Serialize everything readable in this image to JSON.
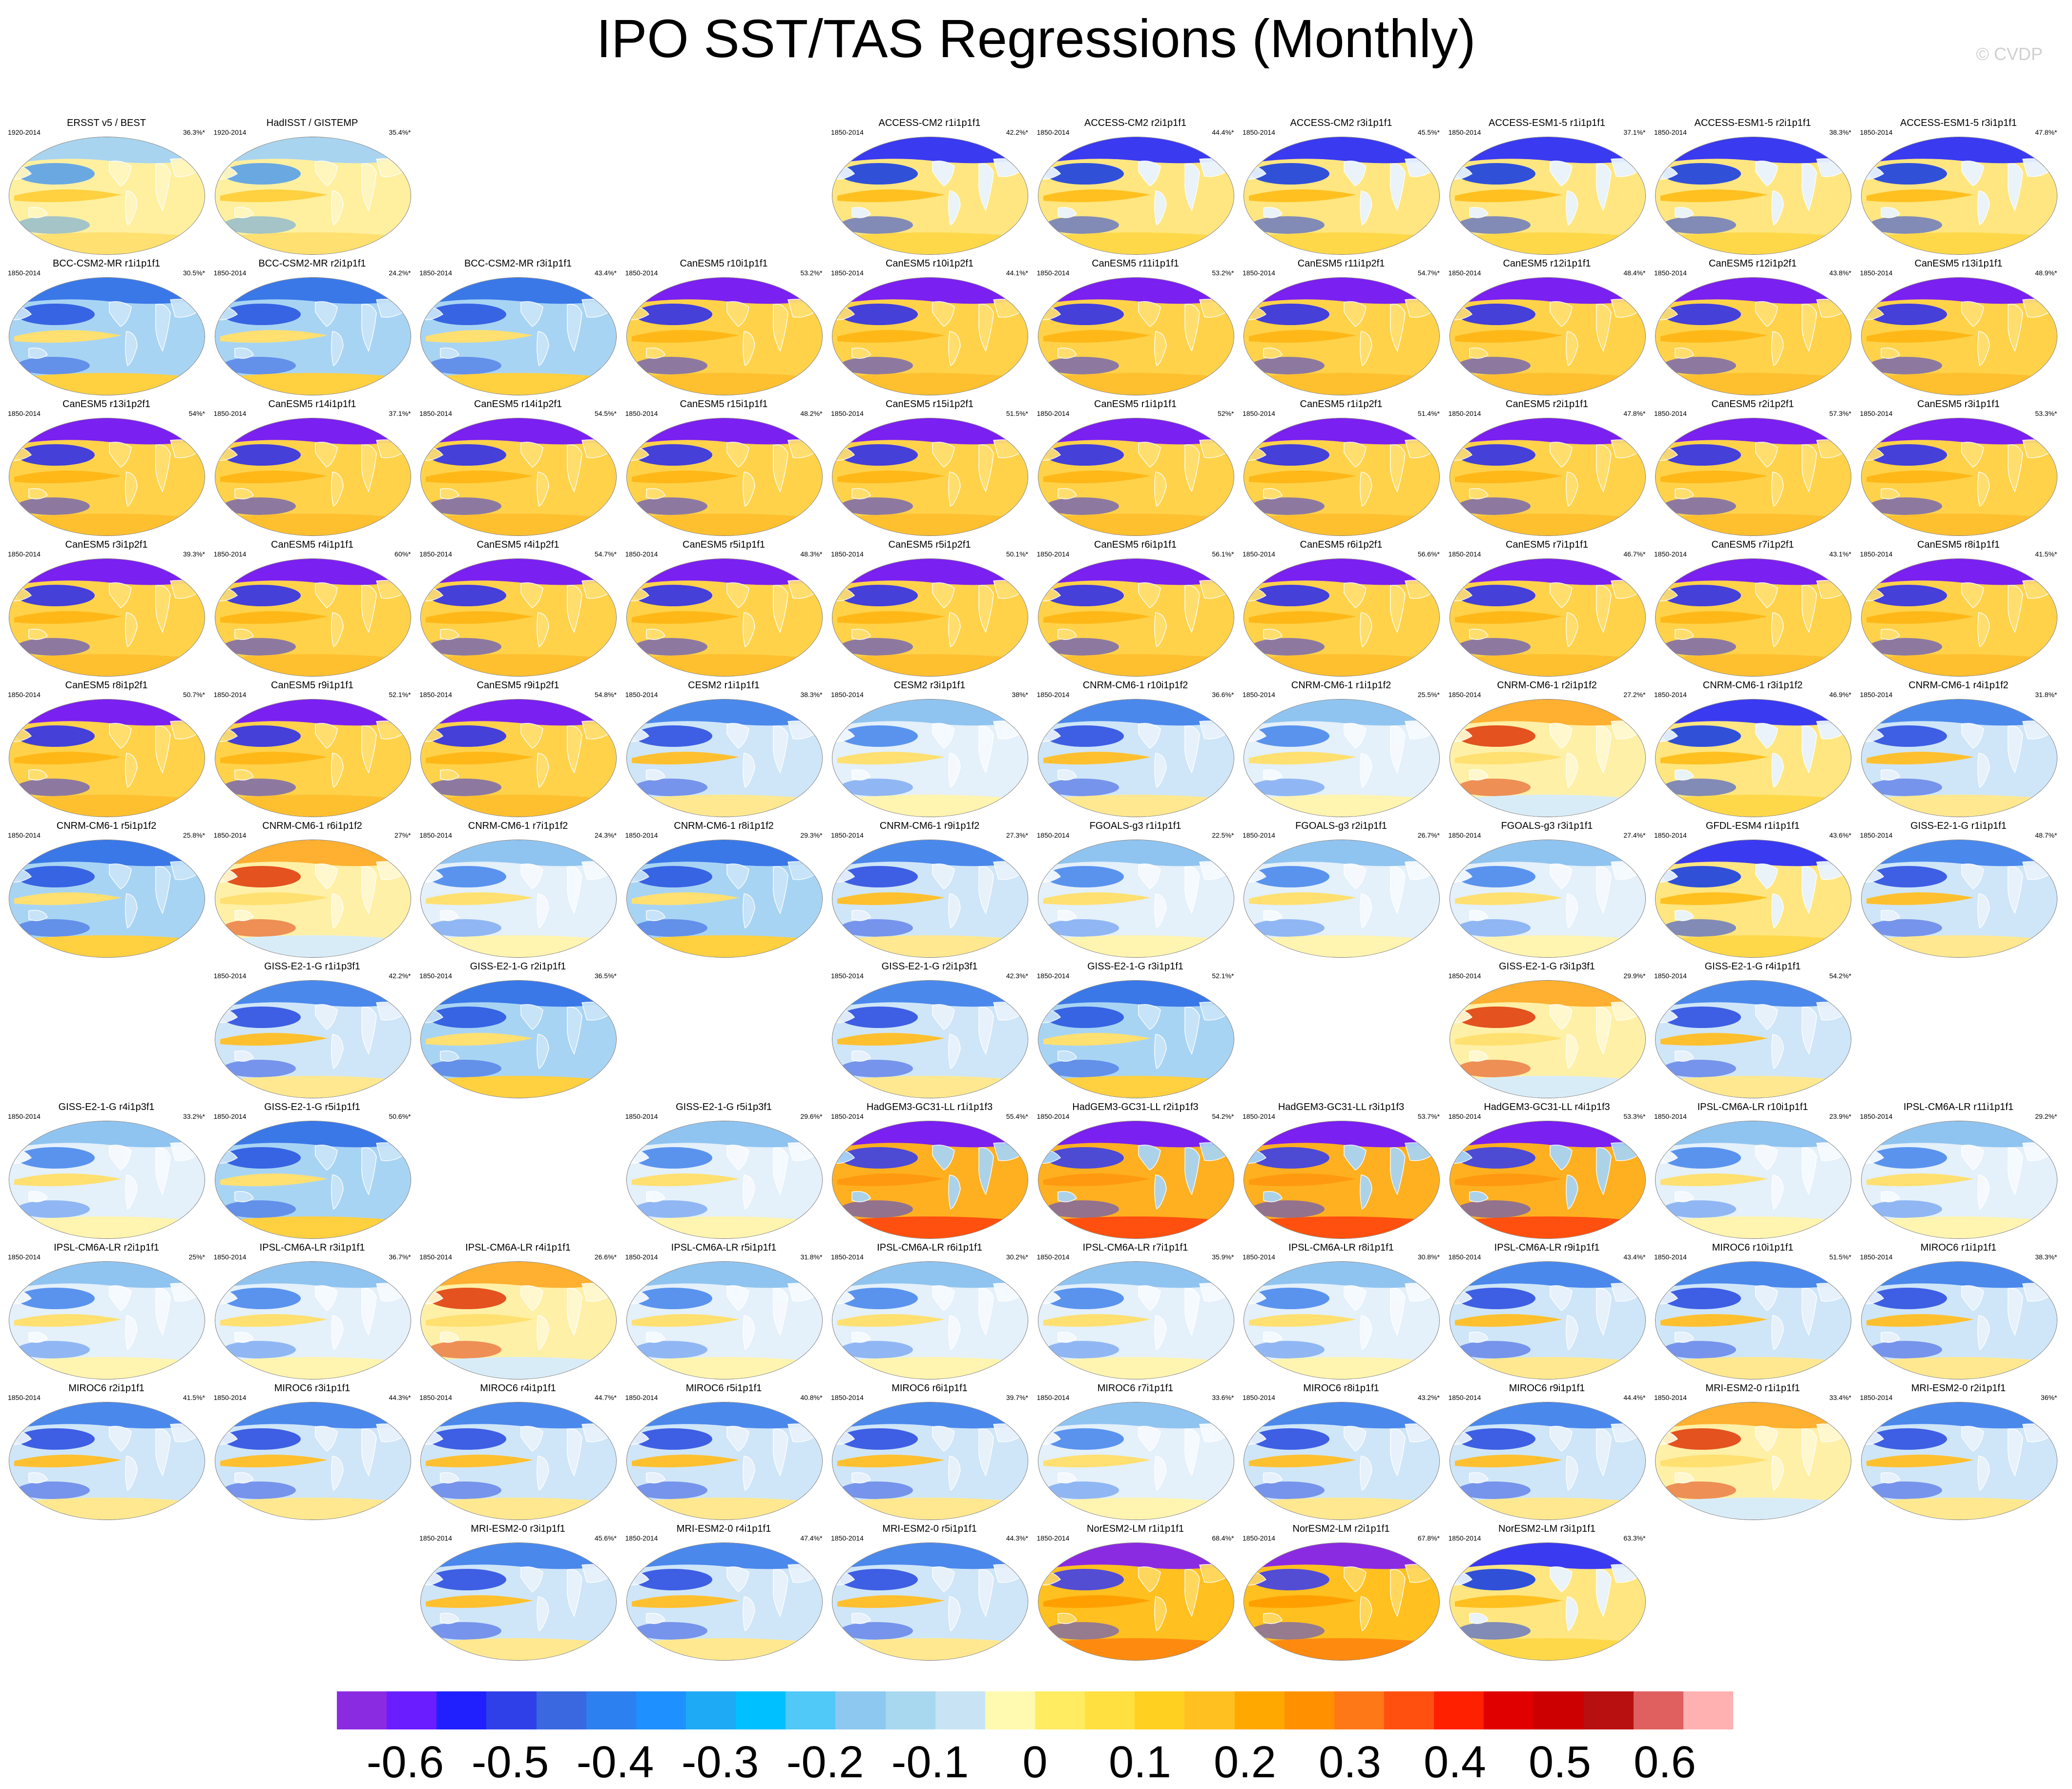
{
  "title": "IPO SST/TAS Regressions (Monthly)",
  "credit": "© CVDP",
  "colorbar": {
    "colors": [
      "#8a2be2",
      "#6a1dff",
      "#2020ff",
      "#3040e8",
      "#3a68e0",
      "#2d80f0",
      "#1e90ff",
      "#1eaaf5",
      "#00c0ff",
      "#50c8f8",
      "#8cc8f0",
      "#a8d8f0",
      "#c8e4f4",
      "#fffab0",
      "#ffec60",
      "#ffe040",
      "#ffd020",
      "#ffc020",
      "#ffa800",
      "#ff9000",
      "#ff7818",
      "#ff5010",
      "#ff2000",
      "#e00000",
      "#cc0000",
      "#b81010",
      "#e06060",
      "#ffb0b0"
    ],
    "labels": [
      "-0.6",
      "-0.5",
      "-0.4",
      "-0.3",
      "-0.2",
      "-0.1",
      "0",
      "0.1",
      "0.2",
      "0.3",
      "0.4",
      "0.5",
      "0.6"
    ],
    "label_values": [
      -0.6,
      -0.5,
      -0.4,
      -0.3,
      -0.2,
      -0.1,
      0,
      0.1,
      0.2,
      0.3,
      0.4,
      0.5,
      0.6
    ]
  },
  "panels": [
    {
      "name": "ERSST v5 / BEST",
      "years": "1920-2014",
      "pct": "36.3%*",
      "row": 0,
      "col": 0,
      "style": "obs"
    },
    {
      "name": "HadISST / GISTEMP",
      "years": "1920-2014",
      "pct": "35.4%*",
      "row": 0,
      "col": 1,
      "style": "obs"
    },
    {
      "name": "ACCESS-CM2 r1i1p1f1",
      "years": "1850-2014",
      "pct": "42.2%*",
      "row": 0,
      "col": 4,
      "style": "strong"
    },
    {
      "name": "ACCESS-CM2 r2i1p1f1",
      "years": "1850-2014",
      "pct": "44.4%*",
      "row": 0,
      "col": 5,
      "style": "strong"
    },
    {
      "name": "ACCESS-CM2 r3i1p1f1",
      "years": "1850-2014",
      "pct": "45.5%*",
      "row": 0,
      "col": 6,
      "style": "strong"
    },
    {
      "name": "ACCESS-ESM1-5 r1i1p1f1",
      "years": "1850-2014",
      "pct": "37.1%*",
      "row": 0,
      "col": 7,
      "style": "strong"
    },
    {
      "name": "ACCESS-ESM1-5 r2i1p1f1",
      "years": "1850-2014",
      "pct": "38.3%*",
      "row": 0,
      "col": 8,
      "style": "strong"
    },
    {
      "name": "ACCESS-ESM1-5 r3i1p1f1",
      "years": "1850-2014",
      "pct": "47.8%*",
      "row": 0,
      "col": 9,
      "style": "strong"
    },
    {
      "name": "BCC-CSM2-MR r1i1p1f1",
      "years": "1850-2014",
      "pct": "30.5%*",
      "row": 1,
      "col": 0,
      "style": "blue"
    },
    {
      "name": "BCC-CSM2-MR r2i1p1f1",
      "years": "1850-2014",
      "pct": "24.2%*",
      "row": 1,
      "col": 1,
      "style": "blue"
    },
    {
      "name": "BCC-CSM2-MR r3i1p1f1",
      "years": "1850-2014",
      "pct": "43.4%*",
      "row": 1,
      "col": 2,
      "style": "blue"
    },
    {
      "name": "CanESM5 r10i1p1f1",
      "years": "1850-2014",
      "pct": "53.2%*",
      "row": 1,
      "col": 3,
      "style": "can"
    },
    {
      "name": "CanESM5 r10i1p2f1",
      "years": "1850-2014",
      "pct": "44.1%*",
      "row": 1,
      "col": 4,
      "style": "can"
    },
    {
      "name": "CanESM5 r11i1p1f1",
      "years": "1850-2014",
      "pct": "53.2%*",
      "row": 1,
      "col": 5,
      "style": "can"
    },
    {
      "name": "CanESM5 r11i1p2f1",
      "years": "1850-2014",
      "pct": "54.7%*",
      "row": 1,
      "col": 6,
      "style": "can"
    },
    {
      "name": "CanESM5 r12i1p1f1",
      "years": "1850-2014",
      "pct": "48.4%*",
      "row": 1,
      "col": 7,
      "style": "can"
    },
    {
      "name": "CanESM5 r12i1p2f1",
      "years": "1850-2014",
      "pct": "43.8%*",
      "row": 1,
      "col": 8,
      "style": "can"
    },
    {
      "name": "CanESM5 r13i1p1f1",
      "years": "1850-2014",
      "pct": "48.9%*",
      "row": 1,
      "col": 9,
      "style": "can"
    },
    {
      "name": "CanESM5 r13i1p2f1",
      "years": "1850-2014",
      "pct": "54%*",
      "row": 2,
      "col": 0,
      "style": "can"
    },
    {
      "name": "CanESM5 r14i1p1f1",
      "years": "1850-2014",
      "pct": "37.1%*",
      "row": 2,
      "col": 1,
      "style": "can"
    },
    {
      "name": "CanESM5 r14i1p2f1",
      "years": "1850-2014",
      "pct": "54.5%*",
      "row": 2,
      "col": 2,
      "style": "can"
    },
    {
      "name": "CanESM5 r15i1p1f1",
      "years": "1850-2014",
      "pct": "48.2%*",
      "row": 2,
      "col": 3,
      "style": "can"
    },
    {
      "name": "CanESM5 r15i1p2f1",
      "years": "1850-2014",
      "pct": "51.5%*",
      "row": 2,
      "col": 4,
      "style": "can"
    },
    {
      "name": "CanESM5 r1i1p1f1",
      "years": "1850-2014",
      "pct": "52%*",
      "row": 2,
      "col": 5,
      "style": "can"
    },
    {
      "name": "CanESM5 r1i1p2f1",
      "years": "1850-2014",
      "pct": "51.4%*",
      "row": 2,
      "col": 6,
      "style": "can"
    },
    {
      "name": "CanESM5 r2i1p1f1",
      "years": "1850-2014",
      "pct": "47.8%*",
      "row": 2,
      "col": 7,
      "style": "can"
    },
    {
      "name": "CanESM5 r2i1p2f1",
      "years": "1850-2014",
      "pct": "57.3%*",
      "row": 2,
      "col": 8,
      "style": "can"
    },
    {
      "name": "CanESM5 r3i1p1f1",
      "years": "1850-2014",
      "pct": "53.3%*",
      "row": 2,
      "col": 9,
      "style": "can"
    },
    {
      "name": "CanESM5 r3i1p2f1",
      "years": "1850-2014",
      "pct": "39.3%*",
      "row": 3,
      "col": 0,
      "style": "can"
    },
    {
      "name": "CanESM5 r4i1p1f1",
      "years": "1850-2014",
      "pct": "60%*",
      "row": 3,
      "col": 1,
      "style": "can"
    },
    {
      "name": "CanESM5 r4i1p2f1",
      "years": "1850-2014",
      "pct": "54.7%*",
      "row": 3,
      "col": 2,
      "style": "can"
    },
    {
      "name": "CanESM5 r5i1p1f1",
      "years": "1850-2014",
      "pct": "48.3%*",
      "row": 3,
      "col": 3,
      "style": "can"
    },
    {
      "name": "CanESM5 r5i1p2f1",
      "years": "1850-2014",
      "pct": "50.1%*",
      "row": 3,
      "col": 4,
      "style": "can"
    },
    {
      "name": "CanESM5 r6i1p1f1",
      "years": "1850-2014",
      "pct": "56.1%*",
      "row": 3,
      "col": 5,
      "style": "can"
    },
    {
      "name": "CanESM5 r6i1p2f1",
      "years": "1850-2014",
      "pct": "56.6%*",
      "row": 3,
      "col": 6,
      "style": "can"
    },
    {
      "name": "CanESM5 r7i1p1f1",
      "years": "1850-2014",
      "pct": "46.7%*",
      "row": 3,
      "col": 7,
      "style": "can"
    },
    {
      "name": "CanESM5 r7i1p2f1",
      "years": "1850-2014",
      "pct": "43.1%*",
      "row": 3,
      "col": 8,
      "style": "can"
    },
    {
      "name": "CanESM5 r8i1p1f1",
      "years": "1850-2014",
      "pct": "41.5%*",
      "row": 3,
      "col": 9,
      "style": "can"
    },
    {
      "name": "CanESM5 r8i1p2f1",
      "years": "1850-2014",
      "pct": "50.7%*",
      "row": 4,
      "col": 0,
      "style": "can"
    },
    {
      "name": "CanESM5 r9i1p1f1",
      "years": "1850-2014",
      "pct": "52.1%*",
      "row": 4,
      "col": 1,
      "style": "can"
    },
    {
      "name": "CanESM5 r9i1p2f1",
      "years": "1850-2014",
      "pct": "54.8%*",
      "row": 4,
      "col": 2,
      "style": "can"
    },
    {
      "name": "CESM2 r1i1p1f1",
      "years": "1850-2014",
      "pct": "38.3%*",
      "row": 4,
      "col": 3,
      "style": "mid"
    },
    {
      "name": "CESM2 r3i1p1f1",
      "years": "1850-2014",
      "pct": "38%*",
      "row": 4,
      "col": 4,
      "style": "pale"
    },
    {
      "name": "CNRM-CM6-1 r10i1p1f2",
      "years": "1850-2014",
      "pct": "36.6%*",
      "row": 4,
      "col": 5,
      "style": "mid"
    },
    {
      "name": "CNRM-CM6-1 r1i1p1f2",
      "years": "1850-2014",
      "pct": "25.5%*",
      "row": 4,
      "col": 6,
      "style": "pale"
    },
    {
      "name": "CNRM-CM6-1 r2i1p1f2",
      "years": "1850-2014",
      "pct": "27.2%*",
      "row": 4,
      "col": 7,
      "style": "warm"
    },
    {
      "name": "CNRM-CM6-1 r3i1p1f2",
      "years": "1850-2014",
      "pct": "46.9%*",
      "row": 4,
      "col": 8,
      "style": "strong"
    },
    {
      "name": "CNRM-CM6-1 r4i1p1f2",
      "years": "1850-2014",
      "pct": "31.8%*",
      "row": 4,
      "col": 9,
      "style": "mid"
    },
    {
      "name": "CNRM-CM6-1 r5i1p1f2",
      "years": "1850-2014",
      "pct": "25.8%*",
      "row": 5,
      "col": 0,
      "style": "blue"
    },
    {
      "name": "CNRM-CM6-1 r6i1p1f2",
      "years": "1850-2014",
      "pct": "27%*",
      "row": 5,
      "col": 1,
      "style": "warm"
    },
    {
      "name": "CNRM-CM6-1 r7i1p1f2",
      "years": "1850-2014",
      "pct": "24.3%*",
      "row": 5,
      "col": 2,
      "style": "pale"
    },
    {
      "name": "CNRM-CM6-1 r8i1p1f2",
      "years": "1850-2014",
      "pct": "29.3%*",
      "row": 5,
      "col": 3,
      "style": "blue"
    },
    {
      "name": "CNRM-CM6-1 r9i1p1f2",
      "years": "1850-2014",
      "pct": "27.3%*",
      "row": 5,
      "col": 4,
      "style": "mid"
    },
    {
      "name": "FGOALS-g3 r1i1p1f1",
      "years": "1850-2014",
      "pct": "22.5%*",
      "row": 5,
      "col": 5,
      "style": "pale"
    },
    {
      "name": "FGOALS-g3 r2i1p1f1",
      "years": "1850-2014",
      "pct": "26.7%*",
      "row": 5,
      "col": 6,
      "style": "pale"
    },
    {
      "name": "FGOALS-g3 r3i1p1f1",
      "years": "1850-2014",
      "pct": "27.4%*",
      "row": 5,
      "col": 7,
      "style": "pale"
    },
    {
      "name": "GFDL-ESM4 r1i1p1f1",
      "years": "1850-2014",
      "pct": "43.6%*",
      "row": 5,
      "col": 8,
      "style": "strong"
    },
    {
      "name": "GISS-E2-1-G r1i1p1f1",
      "years": "1850-2014",
      "pct": "48.7%*",
      "row": 5,
      "col": 9,
      "style": "mid"
    },
    {
      "name": "GISS-E2-1-G r1i1p3f1",
      "years": "1850-2014",
      "pct": "42.2%*",
      "row": 6,
      "col": 1,
      "style": "mid"
    },
    {
      "name": "GISS-E2-1-G r2i1p1f1",
      "years": "1850-2014",
      "pct": "36.5%*",
      "row": 6,
      "col": 2,
      "style": "blue"
    },
    {
      "name": "GISS-E2-1-G r2i1p3f1",
      "years": "1850-2014",
      "pct": "42.3%*",
      "row": 6,
      "col": 4,
      "style": "mid"
    },
    {
      "name": "GISS-E2-1-G r3i1p1f1",
      "years": "1850-2014",
      "pct": "52.1%*",
      "row": 6,
      "col": 5,
      "style": "blue"
    },
    {
      "name": "GISS-E2-1-G r3i1p3f1",
      "years": "1850-2014",
      "pct": "29.9%*",
      "row": 6,
      "col": 7,
      "style": "warm"
    },
    {
      "name": "GISS-E2-1-G r4i1p1f1",
      "years": "1850-2014",
      "pct": "54.2%*",
      "row": 6,
      "col": 8,
      "style": "mid"
    },
    {
      "name": "GISS-E2-1-G r4i1p3f1",
      "years": "1850-2014",
      "pct": "33.2%*",
      "row": 7,
      "col": 0,
      "style": "pale"
    },
    {
      "name": "GISS-E2-1-G r5i1p1f1",
      "years": "1850-2014",
      "pct": "50.6%*",
      "row": 7,
      "col": 1,
      "style": "blue"
    },
    {
      "name": "GISS-E2-1-G r5i1p3f1",
      "years": "1850-2014",
      "pct": "29.6%*",
      "row": 7,
      "col": 3,
      "style": "pale"
    },
    {
      "name": "HadGEM3-GC31-LL r1i1p1f3",
      "years": "1850-2014",
      "pct": "55.4%*",
      "row": 7,
      "col": 4,
      "style": "had"
    },
    {
      "name": "HadGEM3-GC31-LL r2i1p1f3",
      "years": "1850-2014",
      "pct": "54.2%*",
      "row": 7,
      "col": 5,
      "style": "had"
    },
    {
      "name": "HadGEM3-GC31-LL r3i1p1f3",
      "years": "1850-2014",
      "pct": "53.7%*",
      "row": 7,
      "col": 6,
      "style": "had"
    },
    {
      "name": "HadGEM3-GC31-LL r4i1p1f3",
      "years": "1850-2014",
      "pct": "53.3%*",
      "row": 7,
      "col": 7,
      "style": "had"
    },
    {
      "name": "IPSL-CM6A-LR r10i1p1f1",
      "years": "1850-2014",
      "pct": "23.9%*",
      "row": 7,
      "col": 8,
      "style": "pale"
    },
    {
      "name": "IPSL-CM6A-LR r11i1p1f1",
      "years": "1850-2014",
      "pct": "29.2%*",
      "row": 7,
      "col": 9,
      "style": "pale"
    },
    {
      "name": "IPSL-CM6A-LR r2i1p1f1",
      "years": "1850-2014",
      "pct": "25%*",
      "row": 8,
      "col": 0,
      "style": "pale"
    },
    {
      "name": "IPSL-CM6A-LR r3i1p1f1",
      "years": "1850-2014",
      "pct": "36.7%*",
      "row": 8,
      "col": 1,
      "style": "pale"
    },
    {
      "name": "IPSL-CM6A-LR r4i1p1f1",
      "years": "1850-2014",
      "pct": "26.6%*",
      "row": 8,
      "col": 2,
      "style": "warm"
    },
    {
      "name": "IPSL-CM6A-LR r5i1p1f1",
      "years": "1850-2014",
      "pct": "31.8%*",
      "row": 8,
      "col": 3,
      "style": "pale"
    },
    {
      "name": "IPSL-CM6A-LR r6i1p1f1",
      "years": "1850-2014",
      "pct": "30.2%*",
      "row": 8,
      "col": 4,
      "style": "pale"
    },
    {
      "name": "IPSL-CM6A-LR r7i1p1f1",
      "years": "1850-2014",
      "pct": "35.9%*",
      "row": 8,
      "col": 5,
      "style": "pale"
    },
    {
      "name": "IPSL-CM6A-LR r8i1p1f1",
      "years": "1850-2014",
      "pct": "30.8%*",
      "row": 8,
      "col": 6,
      "style": "pale"
    },
    {
      "name": "IPSL-CM6A-LR r9i1p1f1",
      "years": "1850-2014",
      "pct": "43.4%*",
      "row": 8,
      "col": 7,
      "style": "mid"
    },
    {
      "name": "MIROC6 r10i1p1f1",
      "years": "1850-2014",
      "pct": "51.5%*",
      "row": 8,
      "col": 8,
      "style": "mid"
    },
    {
      "name": "MIROC6 r1i1p1f1",
      "years": "1850-2014",
      "pct": "38.3%*",
      "row": 8,
      "col": 9,
      "style": "mid"
    },
    {
      "name": "MIROC6 r2i1p1f1",
      "years": "1850-2014",
      "pct": "41.5%*",
      "row": 9,
      "col": 0,
      "style": "mid"
    },
    {
      "name": "MIROC6 r3i1p1f1",
      "years": "1850-2014",
      "pct": "44.3%*",
      "row": 9,
      "col": 1,
      "style": "mid"
    },
    {
      "name": "MIROC6 r4i1p1f1",
      "years": "1850-2014",
      "pct": "44.7%*",
      "row": 9,
      "col": 2,
      "style": "mid"
    },
    {
      "name": "MIROC6 r5i1p1f1",
      "years": "1850-2014",
      "pct": "40.8%*",
      "row": 9,
      "col": 3,
      "style": "mid"
    },
    {
      "name": "MIROC6 r6i1p1f1",
      "years": "1850-2014",
      "pct": "39.7%*",
      "row": 9,
      "col": 4,
      "style": "mid"
    },
    {
      "name": "MIROC6 r7i1p1f1",
      "years": "1850-2014",
      "pct": "33.6%*",
      "row": 9,
      "col": 5,
      "style": "pale"
    },
    {
      "name": "MIROC6 r8i1p1f1",
      "years": "1850-2014",
      "pct": "43.2%*",
      "row": 9,
      "col": 6,
      "style": "mid"
    },
    {
      "name": "MIROC6 r9i1p1f1",
      "years": "1850-2014",
      "pct": "44.4%*",
      "row": 9,
      "col": 7,
      "style": "mid"
    },
    {
      "name": "MRI-ESM2-0 r1i1p1f1",
      "years": "1850-2014",
      "pct": "33.4%*",
      "row": 9,
      "col": 8,
      "style": "warm"
    },
    {
      "name": "MRI-ESM2-0 r2i1p1f1",
      "years": "1850-2014",
      "pct": "36%*",
      "row": 9,
      "col": 9,
      "style": "mid"
    },
    {
      "name": "MRI-ESM2-0 r3i1p1f1",
      "years": "1850-2014",
      "pct": "45.6%*",
      "row": 10,
      "col": 2,
      "style": "mid"
    },
    {
      "name": "MRI-ESM2-0 r4i1p1f1",
      "years": "1850-2014",
      "pct": "47.4%*",
      "row": 10,
      "col": 3,
      "style": "mid"
    },
    {
      "name": "MRI-ESM2-0 r5i1p1f1",
      "years": "1850-2014",
      "pct": "44.3%*",
      "row": 10,
      "col": 4,
      "style": "mid"
    },
    {
      "name": "NorESM2-LM r1i1p1f1",
      "years": "1850-2014",
      "pct": "68.4%*",
      "row": 10,
      "col": 5,
      "style": "nor"
    },
    {
      "name": "NorESM2-LM r2i1p1f1",
      "years": "1850-2014",
      "pct": "67.8%*",
      "row": 10,
      "col": 6,
      "style": "nor"
    },
    {
      "name": "NorESM2-LM r3i1p1f1",
      "years": "1850-2014",
      "pct": "63.3%*",
      "row": 10,
      "col": 7,
      "style": "strong"
    }
  ]
}
